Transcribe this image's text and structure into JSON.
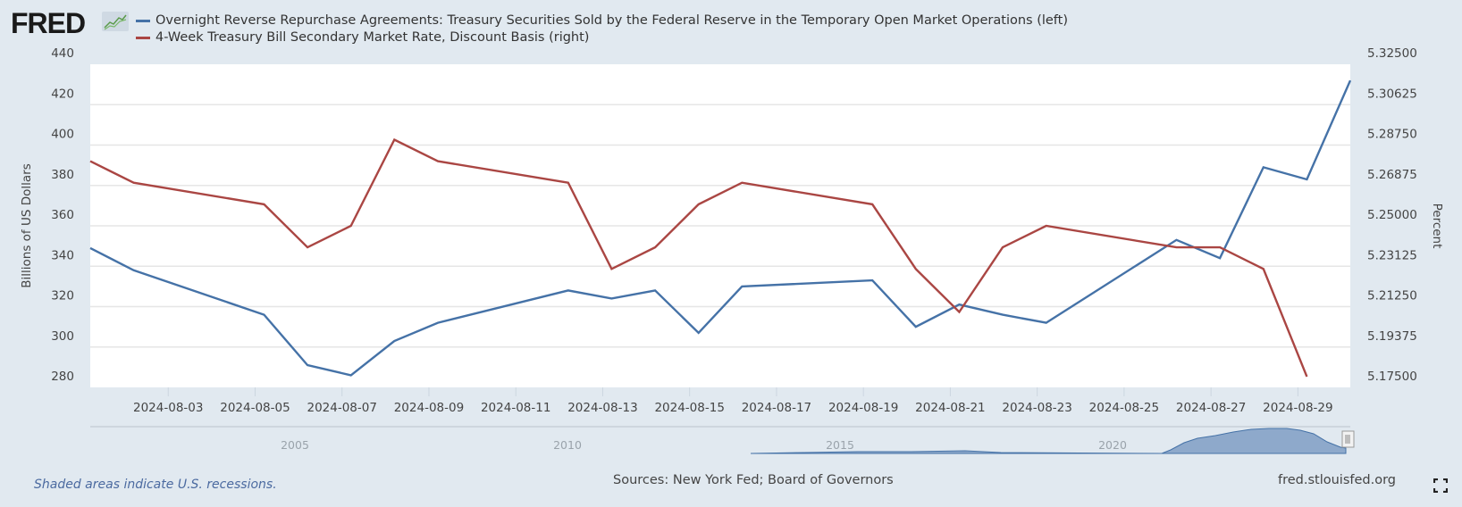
{
  "header": {
    "logo_text": "FRED",
    "logo_icon": "chart-line-icon"
  },
  "legend": [
    {
      "label": "Overnight Reverse Repurchase Agreements: Treasury Securities Sold by the Federal Reserve in the Temporary Open Market Operations (left)",
      "color": "#4572a7"
    },
    {
      "label": "4-Week Treasury Bill Secondary Market Rate, Discount Basis (right)",
      "color": "#aa4643"
    }
  ],
  "chart_data": {
    "type": "line",
    "title": "",
    "xlabel": "",
    "ylabel": "Billions of US Dollars",
    "y2label": "Percent",
    "ylim": [
      280,
      440
    ],
    "y2lim": [
      5.175,
      5.325
    ],
    "xlim": [
      "2024-08-01",
      "2024-08-30"
    ],
    "grid": true,
    "legend_position": "top",
    "y_ticks": [
      "440",
      "420",
      "400",
      "380",
      "360",
      "340",
      "320",
      "300",
      "280"
    ],
    "y2_ticks": [
      "5.32500",
      "5.30625",
      "5.28750",
      "5.26875",
      "5.25000",
      "5.23125",
      "5.21250",
      "5.19375",
      "5.17500"
    ],
    "x_ticks": [
      "2024-08-03",
      "2024-08-05",
      "2024-08-07",
      "2024-08-09",
      "2024-08-11",
      "2024-08-13",
      "2024-08-15",
      "2024-08-17",
      "2024-08-19",
      "2024-08-21",
      "2024-08-23",
      "2024-08-25",
      "2024-08-27",
      "2024-08-29"
    ],
    "series": [
      {
        "name": "Overnight Reverse Repurchase Agreements (left)",
        "axis": "left",
        "color": "#4572a7",
        "x": [
          "2024-08-01",
          "2024-08-02",
          "2024-08-05",
          "2024-08-06",
          "2024-08-07",
          "2024-08-08",
          "2024-08-09",
          "2024-08-12",
          "2024-08-13",
          "2024-08-14",
          "2024-08-15",
          "2024-08-16",
          "2024-08-19",
          "2024-08-20",
          "2024-08-21",
          "2024-08-22",
          "2024-08-23",
          "2024-08-26",
          "2024-08-27",
          "2024-08-28",
          "2024-08-29",
          "2024-08-30"
        ],
        "values": [
          349,
          338,
          316,
          291,
          286,
          303,
          312,
          328,
          324,
          328,
          307,
          330,
          333,
          310,
          321,
          316,
          312,
          353,
          344,
          389,
          383,
          432
        ]
      },
      {
        "name": "4-Week Treasury Bill Secondary Market Rate (right)",
        "axis": "right",
        "color": "#aa4643",
        "x": [
          "2024-08-01",
          "2024-08-02",
          "2024-08-05",
          "2024-08-06",
          "2024-08-07",
          "2024-08-08",
          "2024-08-09",
          "2024-08-12",
          "2024-08-13",
          "2024-08-14",
          "2024-08-15",
          "2024-08-16",
          "2024-08-19",
          "2024-08-20",
          "2024-08-21",
          "2024-08-22",
          "2024-08-23",
          "2024-08-26",
          "2024-08-27",
          "2024-08-28",
          "2024-08-29"
        ],
        "values": [
          5.28,
          5.27,
          5.26,
          5.24,
          5.25,
          5.29,
          5.28,
          5.27,
          5.23,
          5.24,
          5.26,
          5.27,
          5.26,
          5.23,
          5.21,
          5.24,
          5.25,
          5.24,
          5.24,
          5.23,
          5.18
        ]
      }
    ]
  },
  "navigator": {
    "year_labels": [
      "2005",
      "2010",
      "2015",
      "2020"
    ]
  },
  "footer": {
    "recession_note": "Shaded areas indicate U.S. recessions.",
    "sources": "Sources: New York Fed; Board of Governors",
    "site": "fred.stlouisfed.org",
    "fullscreen_icon": "fullscreen-icon"
  }
}
